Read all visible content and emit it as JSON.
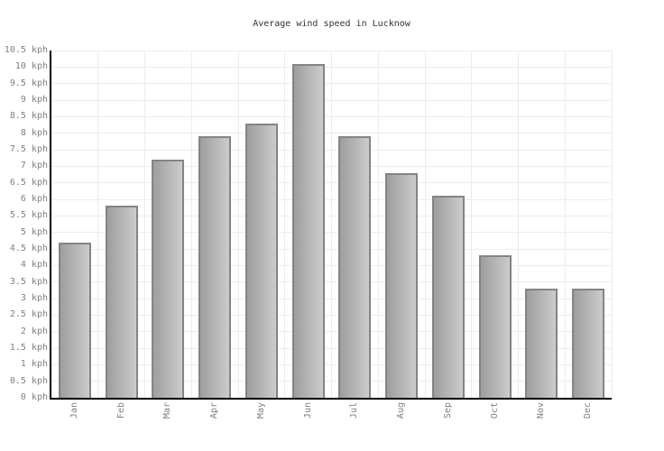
{
  "title": "Average wind speed in Lucknow",
  "chart_data": {
    "type": "bar",
    "title": "Average wind speed in Lucknow",
    "categories": [
      "Jan",
      "Feb",
      "Mar",
      "Apr",
      "May",
      "Jun",
      "Jul",
      "Aug",
      "Sep",
      "Oct",
      "Nov",
      "Dec"
    ],
    "values": [
      4.7,
      5.8,
      7.2,
      7.9,
      8.3,
      10.1,
      7.9,
      6.8,
      6.1,
      4.3,
      3.3,
      3.3
    ],
    "unit": "kph",
    "xlabel": "",
    "ylabel": "",
    "ylim": [
      0,
      10.5
    ],
    "ytick_step": 0.5,
    "ytick_suffix": " kph",
    "grid": "on",
    "legend": "none",
    "x_label_rotation_deg": -90
  },
  "colors": {
    "background": "#ffffff",
    "axis": "#000000",
    "grid": "#ececec",
    "bar_fill_left": "#9e9e9e",
    "bar_fill_right": "#cbcbcb",
    "bar_border": "#848484",
    "tick_label": "#808080",
    "title": "#333333"
  }
}
